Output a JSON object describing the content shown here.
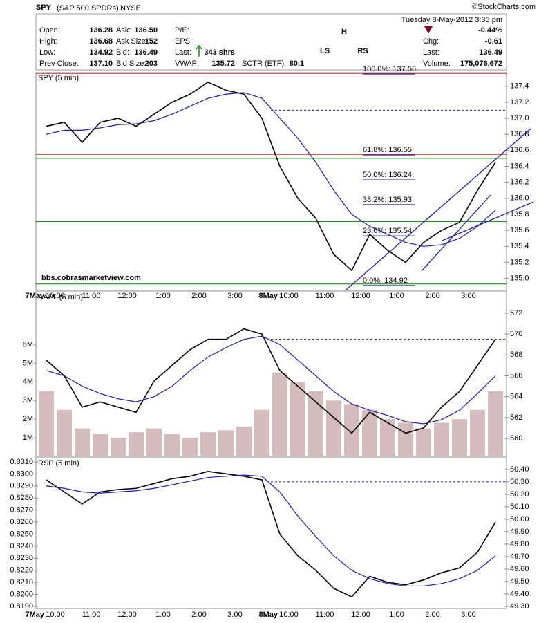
{
  "header": {
    "symbol": "SPY",
    "name": "(S&P 500 SPDRs)",
    "exchange": "NYSE",
    "copyright": "©StockCharts.com",
    "date": "Tuesday  8-May-2012  3:35 pm",
    "change_pct": "-0.44%",
    "col1": [
      {
        "label": "Open:",
        "value": "136.28"
      },
      {
        "label": "High:",
        "value": "136.68"
      },
      {
        "label": "Low:",
        "value": "134.92"
      },
      {
        "label": "Prev Close:",
        "value": "137.10"
      }
    ],
    "col2": [
      {
        "label": "Ask:",
        "value": "136.50"
      },
      {
        "label": "Ask Size:",
        "value": "152"
      },
      {
        "label": "Bid:",
        "value": "136.49"
      },
      {
        "label": "Bid Size:",
        "value": "203"
      }
    ],
    "col3": [
      {
        "label": "P/E:"
      },
      {
        "label": "EPS:"
      },
      {
        "label": "Last:",
        "value": "343 shrs"
      },
      {
        "label": "VWAP:",
        "value": "135.72"
      }
    ],
    "col4": [
      {
        "label": "SCTR (ETF):",
        "value": "80.1"
      }
    ],
    "right": [
      {
        "label": "Chg:",
        "value": "-0.61"
      },
      {
        "label": "Last:",
        "value": "136.49"
      },
      {
        "label": "Volume:",
        "value": "175,076,672"
      }
    ]
  },
  "chart_data": [
    {
      "type": "line",
      "label": "SPY (5 min)",
      "categories": [
        null,
        "10:00",
        null,
        "11:00",
        null,
        "12:00",
        null,
        "1:00",
        null,
        "2:00",
        null,
        "3:00",
        null,
        null,
        "10:00",
        null,
        "11:00",
        null,
        "12:00",
        null,
        "1:00",
        null,
        "2:00",
        null,
        "3:00",
        null
      ],
      "day_labels": [
        "7May",
        "8May"
      ],
      "ylim": [
        134.85,
        137.57
      ],
      "yticks": [
        {
          "value": 135,
          "label": "135.0"
        },
        135.2,
        135.4,
        135.6,
        135.8,
        {
          "value": 136,
          "label": "136.0"
        },
        136.2,
        136.4,
        136.6,
        136.8,
        {
          "value": 137,
          "label": "137.0"
        },
        137.2,
        137.4
      ],
      "y_axis_side": "right",
      "series": [
        {
          "color": "#000000",
          "values": [
            136.9,
            136.95,
            136.7,
            136.95,
            137.0,
            136.9,
            137.05,
            137.2,
            137.3,
            137.45,
            137.35,
            137.3,
            137.0,
            136.4,
            136.0,
            135.75,
            135.3,
            135.1,
            135.55,
            135.35,
            135.2,
            135.45,
            135.6,
            135.7,
            136.1,
            136.45
          ]
        },
        {
          "color": "#1c1ca0",
          "values": [
            136.8,
            136.85,
            136.85,
            136.88,
            136.92,
            136.93,
            136.97,
            137.05,
            137.15,
            137.25,
            137.3,
            137.32,
            137.25,
            137.0,
            136.75,
            136.45,
            136.1,
            135.8,
            135.65,
            135.55,
            135.45,
            135.4,
            135.42,
            135.5,
            135.65,
            135.85
          ]
        }
      ],
      "hlines": [
        {
          "value": 137.56,
          "color": "#c00000"
        },
        {
          "value": 136.55,
          "color": "#c00000"
        },
        {
          "value": 136.5,
          "color": "#008000"
        },
        {
          "value": 135.71,
          "color": "#008000"
        },
        {
          "value": 134.93,
          "color": "#008000"
        },
        {
          "value": 137.1,
          "color": "#1c1ca0",
          "dashed": true
        }
      ],
      "fib": [
        {
          "label": "100.0%: 137.56",
          "value": 137.56
        },
        {
          "label": "61.8%: 136.55",
          "value": 136.55
        },
        {
          "label": "50.0%: 136.24",
          "value": 136.24
        },
        {
          "label": "38.2%: 135.93",
          "value": 135.93
        },
        {
          "label": "23.6%: 135.54",
          "value": 135.54
        },
        {
          "label": "0.0%: 134.92",
          "value": 134.92
        }
      ],
      "annotations": [
        "H",
        "LS",
        "RS"
      ],
      "watermark": "bbs.cobrasmarketview.com"
    },
    {
      "type": "line",
      "label": "AAPL (5 min)",
      "categories": [
        null,
        null,
        null,
        null,
        null,
        null,
        null,
        null,
        null,
        null,
        null,
        null,
        null,
        null,
        null,
        null,
        null,
        null,
        null,
        null,
        null,
        null,
        null,
        null,
        null,
        null
      ],
      "ylim": [
        558.28,
        574.05
      ],
      "yticks": [
        560,
        562,
        564,
        566,
        568,
        570,
        572
      ],
      "y_axis_side": "right",
      "series": [
        {
          "color": "#000000",
          "values": [
            567.5,
            566,
            563,
            563.5,
            563,
            562.5,
            565.5,
            567,
            568.5,
            569.5,
            569.5,
            570.5,
            570,
            566.5,
            565,
            563.5,
            562,
            560.5,
            562.5,
            561.5,
            560.5,
            561,
            563,
            564.5,
            567,
            569.5
          ]
        },
        {
          "color": "#1c1ca0",
          "values": [
            566.5,
            566,
            565,
            564.3,
            563.8,
            563.5,
            564,
            565,
            566.5,
            567.8,
            568.7,
            569.5,
            569.8,
            569,
            567.5,
            566,
            564.5,
            563.3,
            562.7,
            562.2,
            561.6,
            561.4,
            561.8,
            562.7,
            564.3,
            566
          ]
        }
      ],
      "hlines": [
        {
          "value": 569.5,
          "color": "#1c1ca0",
          "dashed": true
        }
      ],
      "volume": {
        "color": "#c4a4a8",
        "ylim": [
          0,
          8.84
        ],
        "yticks": [
          {
            "value": 1,
            "label": "1M"
          },
          {
            "value": 2,
            "label": "2M"
          },
          {
            "value": 3,
            "label": "3M"
          },
          {
            "value": 4,
            "label": "4M"
          },
          {
            "value": 5,
            "label": "5M"
          },
          {
            "value": 6,
            "label": "6M"
          }
        ],
        "values": [
          3.5,
          2.5,
          1.5,
          1.2,
          1.0,
          1.3,
          1.5,
          1.2,
          1.0,
          1.3,
          1.4,
          1.6,
          2.5,
          4.5,
          4.0,
          3.5,
          3.0,
          2.8,
          2.5,
          2.0,
          1.8,
          1.5,
          1.8,
          2.0,
          2.5,
          3.5
        ]
      }
    },
    {
      "type": "line",
      "label": "RSP (5 min)",
      "categories": [
        null,
        "10:00",
        null,
        "11:00",
        null,
        "12:00",
        null,
        "1:00",
        null,
        "2:00",
        null,
        "3:00",
        null,
        null,
        "10:00",
        null,
        "11:00",
        null,
        "12:00",
        null,
        "1:00",
        null,
        "2:00",
        null,
        "3:00",
        null
      ],
      "day_labels": [
        "7May",
        "8May"
      ],
      "ylim": [
        0.81883,
        0.83134
      ],
      "yticks": [
        {
          "value": 0.819,
          "label": "0.8190"
        },
        {
          "value": 0.82,
          "label": "0.8200"
        },
        {
          "value": 0.821,
          "label": "0.8210"
        },
        {
          "value": 0.822,
          "label": "0.8220"
        },
        {
          "value": 0.823,
          "label": "0.8230"
        },
        {
          "value": 0.824,
          "label": "0.8240"
        },
        {
          "value": 0.825,
          "label": "0.8250"
        },
        {
          "value": 0.826,
          "label": "0.8260"
        },
        {
          "value": 0.827,
          "label": "0.8270"
        },
        {
          "value": 0.828,
          "label": "0.8280"
        },
        {
          "value": 0.829,
          "label": "0.8290"
        },
        {
          "value": 0.83,
          "label": "0.8300"
        },
        {
          "value": 0.831,
          "label": "0.8310"
        }
      ],
      "y_axis_side": "left",
      "y2lim": [
        49.283,
        50.494
      ],
      "y2ticks": [
        {
          "value": 49.3,
          "label": "49.30"
        },
        {
          "value": 49.4,
          "label": "49.40"
        },
        {
          "value": 49.5,
          "label": "49.50"
        },
        {
          "value": 49.6,
          "label": "49.60"
        },
        {
          "value": 49.7,
          "label": "49.70"
        },
        {
          "value": 49.8,
          "label": "49.80"
        },
        {
          "value": 49.9,
          "label": "49.90"
        },
        {
          "value": 50,
          "label": "50.00"
        },
        {
          "value": 50.1,
          "label": "50.10"
        },
        {
          "value": 50.2,
          "label": "50.20"
        },
        {
          "value": 50.3,
          "label": "50.30"
        },
        {
          "value": 50.4,
          "label": "50.40"
        }
      ],
      "series": [
        {
          "color": "#000000",
          "values": [
            0.8295,
            0.8285,
            0.8275,
            0.8285,
            0.8287,
            0.8288,
            0.8292,
            0.8296,
            0.8298,
            0.8302,
            0.83,
            0.8298,
            0.8295,
            0.825,
            0.8232,
            0.822,
            0.8205,
            0.8198,
            0.8215,
            0.821,
            0.8208,
            0.8212,
            0.8218,
            0.8222,
            0.8235,
            0.826
          ]
        },
        {
          "color": "#1c1ca0",
          "values": [
            0.829,
            0.8288,
            0.8285,
            0.8284,
            0.8285,
            0.8286,
            0.8288,
            0.8291,
            0.8294,
            0.8297,
            0.8298,
            0.8299,
            0.8298,
            0.8285,
            0.8265,
            0.8248,
            0.8232,
            0.822,
            0.8213,
            0.8209,
            0.8207,
            0.8207,
            0.8209,
            0.8213,
            0.822,
            0.8232
          ]
        }
      ],
      "hlines": [
        {
          "value": 50.3,
          "axis": "y2",
          "color": "#1c1ca0",
          "dashed": true
        }
      ]
    }
  ]
}
